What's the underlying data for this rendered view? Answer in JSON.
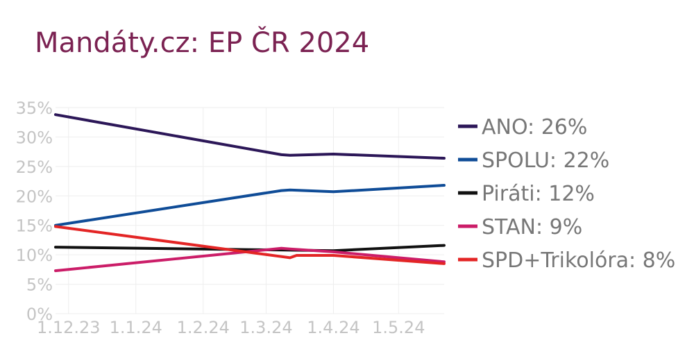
{
  "chart_data": {
    "type": "line",
    "title": "Mandáty.cz: EP ČR 2024",
    "xlabel": "",
    "ylabel": "",
    "ylim": [
      0,
      35
    ],
    "yticks": [
      "0%",
      "5%",
      "10%",
      "15%",
      "20%",
      "25%",
      "30%",
      "35%"
    ],
    "ytick_values": [
      0,
      5,
      10,
      15,
      20,
      25,
      30,
      35
    ],
    "xticks": [
      "1.12.23",
      "1.1.24",
      "1.2.24",
      "1.3.24",
      "1.4.24",
      "1.5.24"
    ],
    "xtick_dates": [
      "2023-12-01",
      "2024-01-01",
      "2024-02-01",
      "2024-03-01",
      "2024-04-01",
      "2024-05-01"
    ],
    "xlim": [
      "2023-11-25",
      "2024-05-22"
    ],
    "grid": true,
    "legend_position": "right",
    "series": [
      {
        "name": "ANO",
        "label": "ANO: 26%",
        "color": "#2c1758",
        "x": [
          "2023-11-25",
          "2024-03-08",
          "2024-03-12",
          "2024-04-01",
          "2024-05-22"
        ],
        "y": [
          33.8,
          27.0,
          26.9,
          27.1,
          26.4
        ]
      },
      {
        "name": "SPOLU",
        "label": "SPOLU: 22%",
        "color": "#0f4c97",
        "x": [
          "2023-11-25",
          "2024-03-08",
          "2024-03-12",
          "2024-04-01",
          "2024-05-22"
        ],
        "y": [
          15.0,
          20.9,
          21.0,
          20.7,
          21.8
        ]
      },
      {
        "name": "Piráti",
        "label": "Piráti: 12%",
        "color": "#111111",
        "x": [
          "2023-11-25",
          "2024-03-12",
          "2024-04-01",
          "2024-05-22"
        ],
        "y": [
          11.3,
          10.8,
          10.7,
          11.6
        ]
      },
      {
        "name": "STAN",
        "label": "STAN: 9%",
        "color": "#cb1d68",
        "x": [
          "2023-11-25",
          "2024-03-08",
          "2024-03-12",
          "2024-04-01",
          "2024-05-22"
        ],
        "y": [
          7.3,
          11.1,
          11.0,
          10.5,
          8.8
        ]
      },
      {
        "name": "SPD+Trikolóra",
        "label": "SPD+Trikolóra: 8%",
        "color": "#e32525",
        "x": [
          "2023-11-25",
          "2024-03-08",
          "2024-03-12",
          "2024-03-15",
          "2024-04-01",
          "2024-05-22"
        ],
        "y": [
          14.8,
          9.7,
          9.5,
          9.9,
          9.9,
          8.5
        ]
      }
    ]
  }
}
